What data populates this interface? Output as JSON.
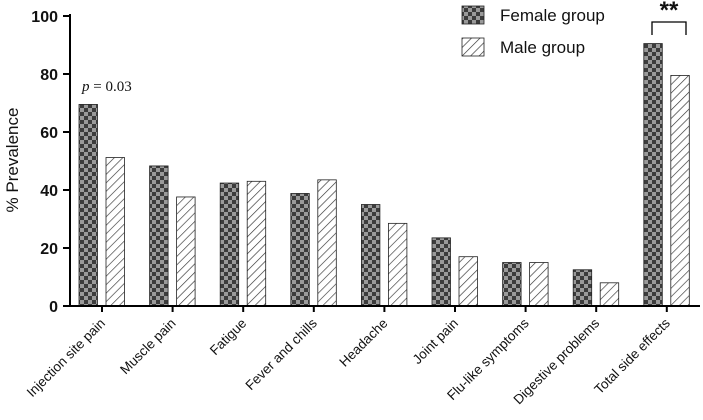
{
  "chart_data": {
    "type": "bar",
    "categories": [
      "Injection site pain",
      "Muscle pain",
      "Fatigue",
      "Fever and chills",
      "Headache",
      "Joint pain",
      "Flu-like symptoms",
      "Digestive problems",
      "Total side effects"
    ],
    "series": [
      {
        "name": "Female group",
        "values": [
          69.5,
          48.3,
          42.4,
          38.8,
          35.0,
          23.5,
          15.0,
          12.5,
          90.5
        ],
        "pattern": "checker"
      },
      {
        "name": "Male group",
        "values": [
          51.2,
          37.6,
          43.0,
          43.5,
          28.5,
          17.0,
          15.0,
          8.0,
          79.5
        ],
        "pattern": "hatch"
      }
    ],
    "ylabel": "% Prevalence",
    "xlabel": "",
    "ylim": [
      0,
      100
    ],
    "yticks": [
      0,
      20,
      40,
      60,
      80,
      100
    ],
    "legend_position": "top-right",
    "annotations": {
      "p_value": {
        "prefix": "p",
        "text": " = 0.03",
        "category": "Injection site pain"
      },
      "significance": {
        "text": "**",
        "category": "Total side effects"
      }
    },
    "colors": {
      "checker_dark": "#3c3c3c",
      "checker_light": "#9a9a9a",
      "hatch_line": "#333333",
      "axis": "#000000"
    }
  }
}
